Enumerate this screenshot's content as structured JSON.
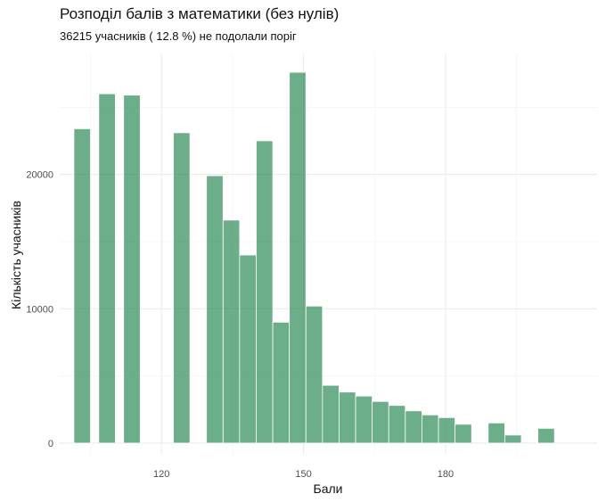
{
  "chart_data": {
    "type": "bar",
    "title": "Розподіл балів з математики (без нулів)",
    "subtitle": "36215 учасників ( 12.8 %) не подолали поріг",
    "xlabel": "Бали",
    "ylabel": "Кількість учасників",
    "x_ticks": [
      120,
      150,
      180
    ],
    "y_ticks": [
      0,
      10000,
      20000
    ],
    "xlim": [
      98.5,
      212
    ],
    "ylim": [
      -800,
      29000
    ],
    "bin_width": 3.5,
    "grid": true,
    "bar_color": "#2e8b57",
    "bins": [
      {
        "x": 103.25,
        "count": 23400
      },
      {
        "x": 108.5,
        "count": 26000
      },
      {
        "x": 113.75,
        "count": 25900
      },
      {
        "x": 124.25,
        "count": 23100
      },
      {
        "x": 131.25,
        "count": 19900
      },
      {
        "x": 134.75,
        "count": 16600
      },
      {
        "x": 138.25,
        "count": 14000
      },
      {
        "x": 141.75,
        "count": 22500
      },
      {
        "x": 145.25,
        "count": 9000
      },
      {
        "x": 148.75,
        "count": 27600
      },
      {
        "x": 152.25,
        "count": 10200
      },
      {
        "x": 155.75,
        "count": 4300
      },
      {
        "x": 159.25,
        "count": 3800
      },
      {
        "x": 162.75,
        "count": 3500
      },
      {
        "x": 166.25,
        "count": 3100
      },
      {
        "x": 169.75,
        "count": 2800
      },
      {
        "x": 173.25,
        "count": 2400
      },
      {
        "x": 176.75,
        "count": 2100
      },
      {
        "x": 180.25,
        "count": 1900
      },
      {
        "x": 183.75,
        "count": 1400
      },
      {
        "x": 190.75,
        "count": 1500
      },
      {
        "x": 194.25,
        "count": 600
      },
      {
        "x": 201.25,
        "count": 1100
      }
    ]
  }
}
